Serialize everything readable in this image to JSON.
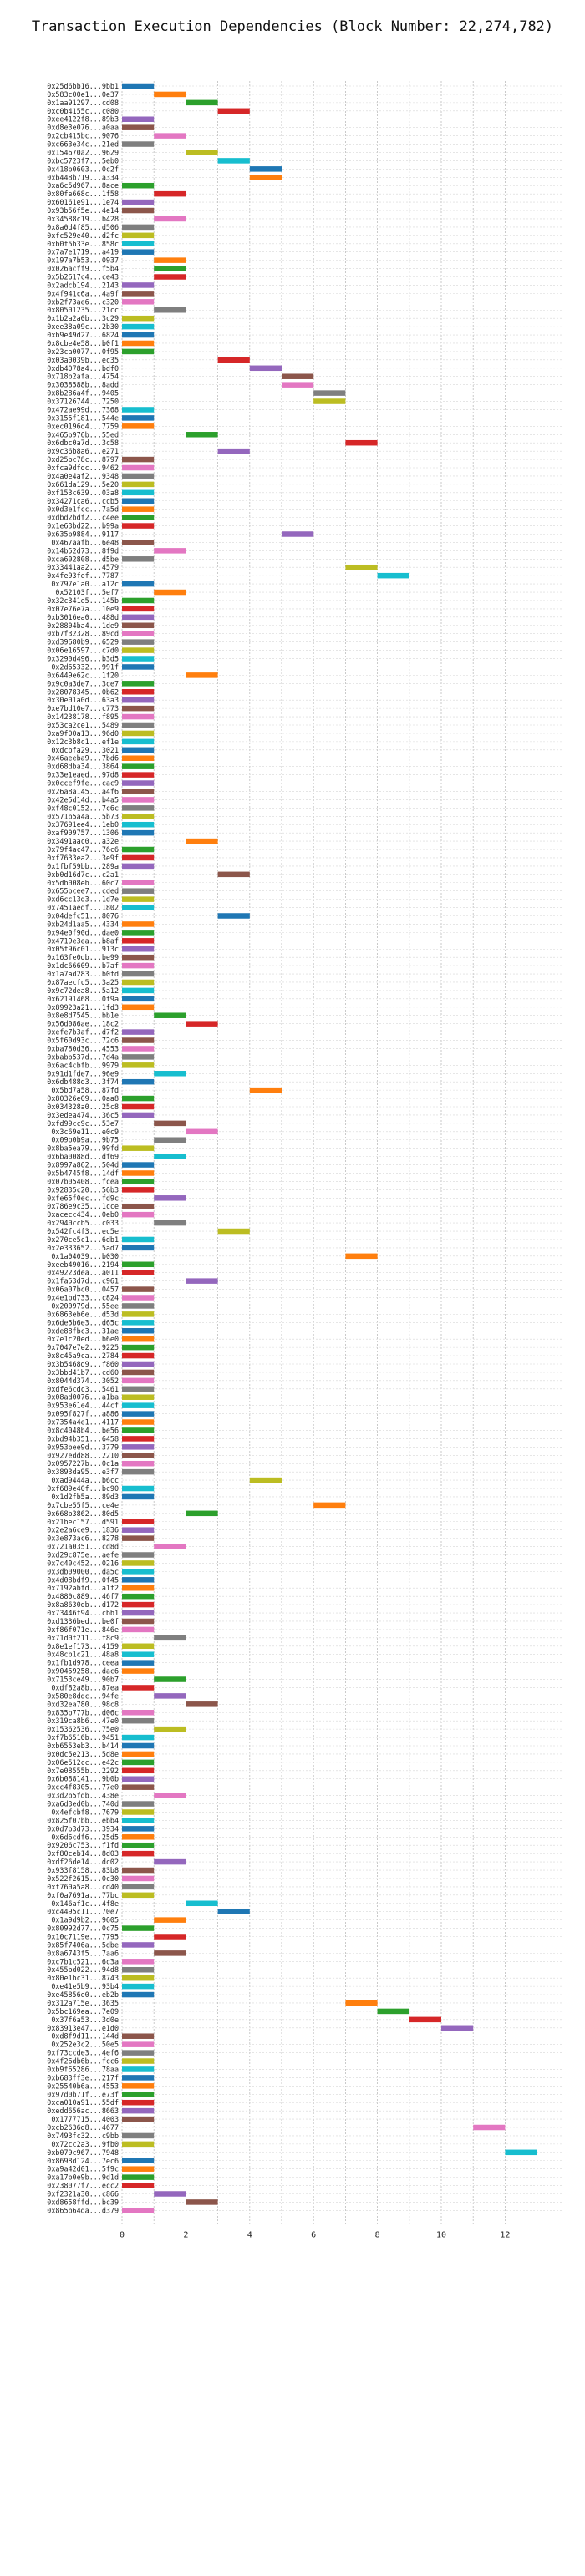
{
  "chart_data": {
    "type": "bar",
    "orientation": "horizontal",
    "title": "Transaction Execution Dependencies (Block Number: 22,274,782)",
    "xlabel": "",
    "ylabel": "",
    "xlim": [
      0,
      13.8
    ],
    "xticks": [
      0,
      2,
      4,
      6,
      8,
      10,
      12
    ],
    "grid": true,
    "legend": "none",
    "bar_length": 1,
    "palette": [
      "#1f77b4",
      "#ff7f0e",
      "#2ca02c",
      "#d62728",
      "#9467bd",
      "#8c564b",
      "#e377c2",
      "#7f7f7f",
      "#bcbd22",
      "#17becf"
    ],
    "transactions": [
      {
        "label": "0x25d6bb16...9bb1",
        "start": 0
      },
      {
        "label": "0x583c00e1...0e37",
        "start": 1
      },
      {
        "label": "0x1aa91297...cd08",
        "start": 2
      },
      {
        "label": "0xc0b4155c...c080",
        "start": 3
      },
      {
        "label": "0xee4122f8...89b3",
        "start": 0
      },
      {
        "label": "0xd8e3e076...a0aa",
        "start": 0
      },
      {
        "label": "0x2cb415bc...9076",
        "start": 1
      },
      {
        "label": "0xc663e34c...21ed",
        "start": 0
      },
      {
        "label": "0x154670a2...9629",
        "start": 2
      },
      {
        "label": "0xbc5723f7...5eb0",
        "start": 3
      },
      {
        "label": "0x418b0603...0c2f",
        "start": 4
      },
      {
        "label": "0xb448b719...a334",
        "start": 4
      },
      {
        "label": "0xa6c5d967...8ace",
        "start": 0
      },
      {
        "label": "0x80fe668c...1f58",
        "start": 1
      },
      {
        "label": "0x60161e91...1e74",
        "start": 0
      },
      {
        "label": "0x93b56f5e...4e14",
        "start": 0
      },
      {
        "label": "0x34588c19...b428",
        "start": 1
      },
      {
        "label": "0x8a0d4f85...d506",
        "start": 0
      },
      {
        "label": "0xfc529e40...d2fc",
        "start": 0
      },
      {
        "label": "0xb0f5b33e...858c",
        "start": 0
      },
      {
        "label": "0x7a7e1719...a419",
        "start": 0
      },
      {
        "label": "0x197a7b53...0937",
        "start": 1
      },
      {
        "label": "0x026acff9...f5b4",
        "start": 1
      },
      {
        "label": "0x5b2617c4...ce43",
        "start": 1
      },
      {
        "label": "0x2adcb194...2143",
        "start": 0
      },
      {
        "label": "0x4f941c6a...4a9f",
        "start": 0
      },
      {
        "label": "0xb2f73ae6...c320",
        "start": 0
      },
      {
        "label": "0x80501235...21cc",
        "start": 1
      },
      {
        "label": "0x1b2a2a0b...3c29",
        "start": 0
      },
      {
        "label": "0xee38a09c...2b30",
        "start": 0
      },
      {
        "label": "0xb9e49d27...6824",
        "start": 0
      },
      {
        "label": "0x8cbe4e58...b0f1",
        "start": 0
      },
      {
        "label": "0x23ca0077...0f95",
        "start": 0
      },
      {
        "label": "0x03a0039b...ec35",
        "start": 3
      },
      {
        "label": "0xdb4078a4...bdf0",
        "start": 4
      },
      {
        "label": "0x718b2afa...4754",
        "start": 5
      },
      {
        "label": "0x3038588b...8add",
        "start": 5
      },
      {
        "label": "0x8b286a4f...9405",
        "start": 6
      },
      {
        "label": "0x37126744...7250",
        "start": 6
      },
      {
        "label": "0x472ae99d...7368",
        "start": 0
      },
      {
        "label": "0x3155f181...544e",
        "start": 0
      },
      {
        "label": "0xec0196d4...7759",
        "start": 0
      },
      {
        "label": "0x465b976b...55ed",
        "start": 2
      },
      {
        "label": "0x6dbc0a7d...3c58",
        "start": 7
      },
      {
        "label": "0x9c36b8a6...e271",
        "start": 3
      },
      {
        "label": "0xd25bc78c...8797",
        "start": 0
      },
      {
        "label": "0xfca9dfdc...9462",
        "start": 0
      },
      {
        "label": "0x4a0e4af2...9348",
        "start": 0
      },
      {
        "label": "0x661da129...5e20",
        "start": 0
      },
      {
        "label": "0xf153c639...03a8",
        "start": 0
      },
      {
        "label": "0x34271ca6...ccb5",
        "start": 0
      },
      {
        "label": "0x0d3e1fcc...7a5d",
        "start": 0
      },
      {
        "label": "0xdbd2bdf2...c4ee",
        "start": 0
      },
      {
        "label": "0x1e63bd22...b99a",
        "start": 0
      },
      {
        "label": "0x635b9884...9117",
        "start": 5
      },
      {
        "label": "0x467aafb...6e48",
        "start": 0
      },
      {
        "label": "0x14b52d73...8f9d",
        "start": 1
      },
      {
        "label": "0xca602808...d5be",
        "start": 0
      },
      {
        "label": "0x33441aa2...4579",
        "start": 7
      },
      {
        "label": "0x4fe93fef...7787",
        "start": 8
      },
      {
        "label": "0x797e1a0...a12c",
        "start": 0
      },
      {
        "label": "0x52103f...5ef7",
        "start": 1
      },
      {
        "label": "0x32c341e5...145b",
        "start": 0
      },
      {
        "label": "0x07e76e7a...10e9",
        "start": 0
      },
      {
        "label": "0xb3016ea0...488d",
        "start": 0
      },
      {
        "label": "0x28804ba4...1de9",
        "start": 0
      },
      {
        "label": "0xb7f32328...89cd",
        "start": 0
      },
      {
        "label": "0xd39680b9...6529",
        "start": 0
      },
      {
        "label": "0x06e16597...c7d0",
        "start": 0
      },
      {
        "label": "0x3290d496...b3d5",
        "start": 0
      },
      {
        "label": "0x2d65332...991f",
        "start": 0
      },
      {
        "label": "0x6449e62c...1f20",
        "start": 2
      },
      {
        "label": "0x9c0a3de7...3ce7",
        "start": 0
      },
      {
        "label": "0x28078345...0b62",
        "start": 0
      },
      {
        "label": "0x30e01a0d...63a3",
        "start": 0
      },
      {
        "label": "0xe7bd10e7...c773",
        "start": 0
      },
      {
        "label": "0x14238178...f895",
        "start": 0
      },
      {
        "label": "0x53ca2ce1...5489",
        "start": 0
      },
      {
        "label": "0xa9f00a13...96d0",
        "start": 0
      },
      {
        "label": "0x12c3b8c1...ef1e",
        "start": 0
      },
      {
        "label": "0xdcbfa29...3021",
        "start": 0
      },
      {
        "label": "0x46aeeba9...7bd6",
        "start": 0
      },
      {
        "label": "0xd68dba34...3864",
        "start": 0
      },
      {
        "label": "0x33e1eaed...97d8",
        "start": 0
      },
      {
        "label": "0x0ccef9fe...cac9",
        "start": 0
      },
      {
        "label": "0x26a8a145...a4f6",
        "start": 0
      },
      {
        "label": "0x42e5d14d...b4a5",
        "start": 0
      },
      {
        "label": "0xf48c0152...7c6c",
        "start": 0
      },
      {
        "label": "0x571b5a4a...5b73",
        "start": 0
      },
      {
        "label": "0x37691ee4...1eb0",
        "start": 0
      },
      {
        "label": "0xaf909757...1306",
        "start": 0
      },
      {
        "label": "0x3491aac0...a32e",
        "start": 2
      },
      {
        "label": "0x79f4ac47...76c6",
        "start": 0
      },
      {
        "label": "0xf7633ea2...3e9f",
        "start": 0
      },
      {
        "label": "0x1fbf59bb...289a",
        "start": 0
      },
      {
        "label": "0xb0d16d7c...c2a1",
        "start": 3
      },
      {
        "label": "0x5db008eb...60c7",
        "start": 0
      },
      {
        "label": "0x655bcee7...cded",
        "start": 0
      },
      {
        "label": "0xd6cc13d3...1d7e",
        "start": 0
      },
      {
        "label": "0x7451aedf...1802",
        "start": 0
      },
      {
        "label": "0x04defc51...8076",
        "start": 3
      },
      {
        "label": "0xb24d1aa5...4334",
        "start": 0
      },
      {
        "label": "0x94e0f90d...dae0",
        "start": 0
      },
      {
        "label": "0x4719e3ea...b8af",
        "start": 0
      },
      {
        "label": "0x05f96c01...913c",
        "start": 0
      },
      {
        "label": "0x163fe0db...be99",
        "start": 0
      },
      {
        "label": "0x1dc66609...b7af",
        "start": 0
      },
      {
        "label": "0x1a7ad283...b0fd",
        "start": 0
      },
      {
        "label": "0x87aecfc5...3a25",
        "start": 0
      },
      {
        "label": "0x9c72dea8...5a12",
        "start": 0
      },
      {
        "label": "0x62191468...0f9a",
        "start": 0
      },
      {
        "label": "0x89923a21...1fd3",
        "start": 0
      },
      {
        "label": "0x8e8d7545...bb1e",
        "start": 1
      },
      {
        "label": "0x56d086ae...18c2",
        "start": 2
      },
      {
        "label": "0xefe7b3af...d7f2",
        "start": 0
      },
      {
        "label": "0x5f60d93c...72c6",
        "start": 0
      },
      {
        "label": "0xba780d36...4553",
        "start": 0
      },
      {
        "label": "0xbabb537d...7d4a",
        "start": 0
      },
      {
        "label": "0x6ac4cbfb...9979",
        "start": 0
      },
      {
        "label": "0x91d1fde7...96e9",
        "start": 1
      },
      {
        "label": "0x6db488d3...3f74",
        "start": 0
      },
      {
        "label": "0x5bd7a58...87fd",
        "start": 4
      },
      {
        "label": "0x80326e09...0aa8",
        "start": 0
      },
      {
        "label": "0x034328a0...25c8",
        "start": 0
      },
      {
        "label": "0x3edea474...36c5",
        "start": 0
      },
      {
        "label": "0xfd99cc9c...53e7",
        "start": 1
      },
      {
        "label": "0x3c69e11...e0c9",
        "start": 2
      },
      {
        "label": "0x09b0b9a...9b75",
        "start": 1
      },
      {
        "label": "0x8ba5ea79...99fd",
        "start": 0
      },
      {
        "label": "0x6ba0088d...df69",
        "start": 1
      },
      {
        "label": "0x8997a862...504d",
        "start": 0
      },
      {
        "label": "0x5b4745f8...14df",
        "start": 0
      },
      {
        "label": "0x07b05408...fcea",
        "start": 0
      },
      {
        "label": "0x92835c20...56b3",
        "start": 0
      },
      {
        "label": "0xfe65f0ec...fd9c",
        "start": 1
      },
      {
        "label": "0x786e9c35...1cce",
        "start": 0
      },
      {
        "label": "0xacecc434...0eb0",
        "start": 0
      },
      {
        "label": "0x2940ccb5...c033",
        "start": 1
      },
      {
        "label": "0x542fc4f3...ec5e",
        "start": 3
      },
      {
        "label": "0x270ce5c1...6db1",
        "start": 0
      },
      {
        "label": "0x2e333652...5ad7",
        "start": 0
      },
      {
        "label": "0x1a04039...b030",
        "start": 7
      },
      {
        "label": "0xeeb49016...2194",
        "start": 0
      },
      {
        "label": "0x49223dea...a011",
        "start": 0
      },
      {
        "label": "0x1fa53d7d...c961",
        "start": 2
      },
      {
        "label": "0x06a07bc0...0457",
        "start": 0
      },
      {
        "label": "0x4e1bd733...c824",
        "start": 0
      },
      {
        "label": "0x200979d...55ee",
        "start": 0
      },
      {
        "label": "0x6863eb6e...d53d",
        "start": 0
      },
      {
        "label": "0x6de5b6e3...d65c",
        "start": 0
      },
      {
        "label": "0xde88fbc3...31ae",
        "start": 0
      },
      {
        "label": "0x7e1c20ed...b6e0",
        "start": 0
      },
      {
        "label": "0x7047e7e2...9225",
        "start": 0
      },
      {
        "label": "0x8c45a9ca...2784",
        "start": 0
      },
      {
        "label": "0x3b5468d9...f860",
        "start": 0
      },
      {
        "label": "0x3bbd41b7...cd60",
        "start": 0
      },
      {
        "label": "0x8044d374...3052",
        "start": 0
      },
      {
        "label": "0xdfe6cdc3...5461",
        "start": 0
      },
      {
        "label": "0x08ad0076...a1ba",
        "start": 0
      },
      {
        "label": "0x953e61e4...44cf",
        "start": 0
      },
      {
        "label": "0x095f827f...a886",
        "start": 0
      },
      {
        "label": "0x7354a4e1...4117",
        "start": 0
      },
      {
        "label": "0x8c4048b4...be56",
        "start": 0
      },
      {
        "label": "0xbd94b351...6458",
        "start": 0
      },
      {
        "label": "0x953bee9d...3779",
        "start": 0
      },
      {
        "label": "0x927edd88...2210",
        "start": 0
      },
      {
        "label": "0x0957227b...0c1a",
        "start": 0
      },
      {
        "label": "0x3893da95...e3f7",
        "start": 0
      },
      {
        "label": "0xad9444a...b6cc",
        "start": 4
      },
      {
        "label": "0xf689e40f...bc90",
        "start": 0
      },
      {
        "label": "0x1d2fb5a...89d3",
        "start": 0
      },
      {
        "label": "0x7cbe55f5...ce4e",
        "start": 6
      },
      {
        "label": "0x668b3862...80d5",
        "start": 2
      },
      {
        "label": "0x21bec157...d591",
        "start": 0
      },
      {
        "label": "0x2e2a6ce9...1836",
        "start": 0
      },
      {
        "label": "0x3e873ac6...8278",
        "start": 0
      },
      {
        "label": "0x721a0351...cd8d",
        "start": 1
      },
      {
        "label": "0xd29c875e...aefe",
        "start": 0
      },
      {
        "label": "0x7c40c452...0216",
        "start": 0
      },
      {
        "label": "0x3db09000...da5c",
        "start": 0
      },
      {
        "label": "0x4d08bdf9...0f45",
        "start": 0
      },
      {
        "label": "0x7192abfd...a1f2",
        "start": 0
      },
      {
        "label": "0x4880c889...46f7",
        "start": 0
      },
      {
        "label": "0x8a8630db...d172",
        "start": 0
      },
      {
        "label": "0x73446f94...cbb1",
        "start": 0
      },
      {
        "label": "0xd1336bed...be0f",
        "start": 0
      },
      {
        "label": "0xf86f071e...846e",
        "start": 0
      },
      {
        "label": "0x71d0f211...f8c9",
        "start": 1
      },
      {
        "label": "0x8e1ef173...4159",
        "start": 0
      },
      {
        "label": "0x48cb1c21...48a8",
        "start": 0
      },
      {
        "label": "0x1fb1d978...ceea",
        "start": 0
      },
      {
        "label": "0x90459258...dac6",
        "start": 0
      },
      {
        "label": "0x7153ce49...90b7",
        "start": 1
      },
      {
        "label": "0xdf82a8b...87ea",
        "start": 0
      },
      {
        "label": "0x580e8ddc...94fe",
        "start": 1
      },
      {
        "label": "0xd32ea780...98c8",
        "start": 2
      },
      {
        "label": "0x835b777b...d06c",
        "start": 0
      },
      {
        "label": "0x319ca8b6...47e0",
        "start": 0
      },
      {
        "label": "0x15362536...75e0",
        "start": 1
      },
      {
        "label": "0xf7b6516b...9451",
        "start": 0
      },
      {
        "label": "0xb6553eb3...b414",
        "start": 0
      },
      {
        "label": "0x0dc5e213...5d8e",
        "start": 0
      },
      {
        "label": "0x06e512cc...e42c",
        "start": 0
      },
      {
        "label": "0x7e08555b...2292",
        "start": 0
      },
      {
        "label": "0x6b088141...9b0b",
        "start": 0
      },
      {
        "label": "0xcc4f8305...77e0",
        "start": 0
      },
      {
        "label": "0x3d2b5fdb...438e",
        "start": 1
      },
      {
        "label": "0xa6d3ed0b...740d",
        "start": 0
      },
      {
        "label": "0x4efcbf8...7679",
        "start": 0
      },
      {
        "label": "0x825f07bb...ebb4",
        "start": 0
      },
      {
        "label": "0x0d7b3d73...3934",
        "start": 0
      },
      {
        "label": "0x6d6cdf6...25d5",
        "start": 0
      },
      {
        "label": "0x9206c753...f1fd",
        "start": 0
      },
      {
        "label": "0xf80ceb14...8d03",
        "start": 0
      },
      {
        "label": "0xdf26de14...dc02",
        "start": 1
      },
      {
        "label": "0x933f8158...83b8",
        "start": 0
      },
      {
        "label": "0x522f2615...0c30",
        "start": 0
      },
      {
        "label": "0xf760a5a8...cd40",
        "start": 0
      },
      {
        "label": "0xf0a7691a...77bc",
        "start": 0
      },
      {
        "label": "0x146af1c...4f8e",
        "start": 2
      },
      {
        "label": "0xc4495c11...70e7",
        "start": 3
      },
      {
        "label": "0x1a9d9b2...9605",
        "start": 1
      },
      {
        "label": "0x80992d77...0c75",
        "start": 0
      },
      {
        "label": "0x10c7119e...7795",
        "start": 1
      },
      {
        "label": "0x85f7406a...5dbe",
        "start": 0
      },
      {
        "label": "0x8a6743f5...7aa6",
        "start": 1
      },
      {
        "label": "0xc7b1c521...6c3a",
        "start": 0
      },
      {
        "label": "0x455bd022...94d8",
        "start": 0
      },
      {
        "label": "0x80e1bc31...8743",
        "start": 0
      },
      {
        "label": "0xe41e5b9...93b4",
        "start": 0
      },
      {
        "label": "0xe45856e0...eb2b",
        "start": 0
      },
      {
        "label": "0x312a715e...3635",
        "start": 7
      },
      {
        "label": "0x5bc169ea...7e09",
        "start": 8
      },
      {
        "label": "0x37f6a53...3d0e",
        "start": 9
      },
      {
        "label": "0x83913e47...e1d0",
        "start": 10
      },
      {
        "label": "0xd8f9d11...144d",
        "start": 0
      },
      {
        "label": "0x252e3c2...50e5",
        "start": 0
      },
      {
        "label": "0xf73ccde3...4ef6",
        "start": 0
      },
      {
        "label": "0x4f26db6b...fcc6",
        "start": 0
      },
      {
        "label": "0xb9f65286...78aa",
        "start": 0
      },
      {
        "label": "0xb683ff3e...217f",
        "start": 0
      },
      {
        "label": "0x25540b6a...4553",
        "start": 0
      },
      {
        "label": "0x97d0b71f...e73f",
        "start": 0
      },
      {
        "label": "0xca010a91...55df",
        "start": 0
      },
      {
        "label": "0xedd656ac...8663",
        "start": 0
      },
      {
        "label": "0x1777715...4003",
        "start": 0
      },
      {
        "label": "0xcb2636d8...4677",
        "start": 11
      },
      {
        "label": "0x7493fc32...c9bb",
        "start": 0
      },
      {
        "label": "0x72cc2a3...9fb0",
        "start": 0
      },
      {
        "label": "0xb079c967...7948",
        "start": 12
      },
      {
        "label": "0x8698d124...7ec6",
        "start": 0
      },
      {
        "label": "0xa9a42d01...5f9c",
        "start": 0
      },
      {
        "label": "0xa17b0e9b...9d1d",
        "start": 0
      },
      {
        "label": "0x238077f7...ecc2",
        "start": 0
      },
      {
        "label": "0xf2321a30...c866",
        "start": 1
      },
      {
        "label": "0xd8658ffd...bc39",
        "start": 2
      },
      {
        "label": "0x865b64da...d379",
        "start": 0
      }
    ]
  }
}
